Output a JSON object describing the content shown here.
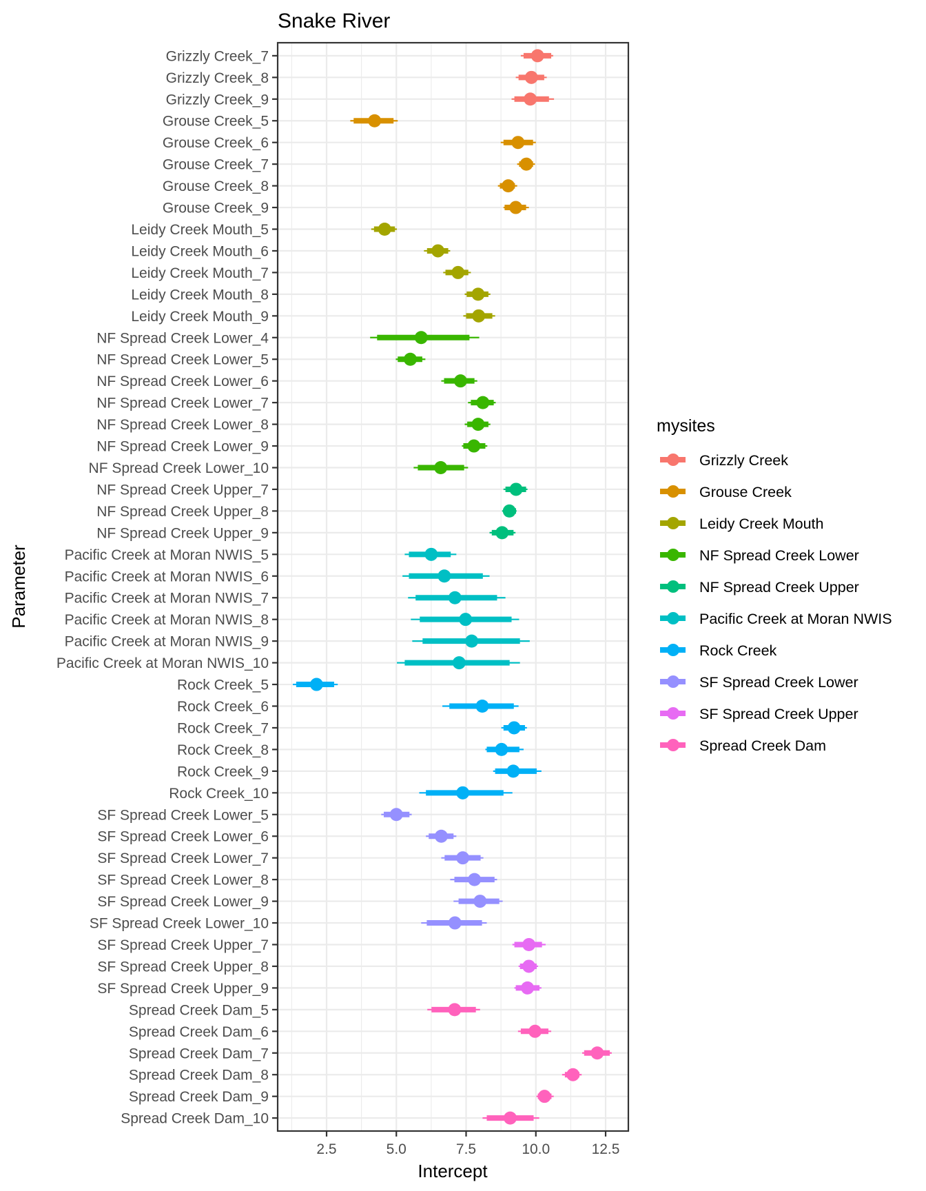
{
  "chart_data": {
    "type": "scatter",
    "subtype": "pointinterval",
    "title": "Snake River",
    "xlabel": "Intercept",
    "ylabel": "Parameter",
    "xlim": [
      0.75,
      13.3
    ],
    "xticks": [
      2.5,
      5.0,
      7.5,
      10.0,
      12.5
    ],
    "xtick_labels": [
      "2.5",
      "5.0",
      "7.5",
      "10.0",
      "12.5"
    ],
    "grid": true,
    "legend": {
      "title": "mysites",
      "placement": "right",
      "entries": [
        {
          "name": "Grizzly Creek",
          "color": "#F8766D"
        },
        {
          "name": "Grouse Creek",
          "color": "#D89000"
        },
        {
          "name": "Leidy Creek Mouth",
          "color": "#A3A500"
        },
        {
          "name": "NF Spread Creek Lower",
          "color": "#39B600"
        },
        {
          "name": "NF Spread Creek Upper",
          "color": "#00BF7D"
        },
        {
          "name": "Pacific Creek at Moran NWIS",
          "color": "#00BFC4"
        },
        {
          "name": "Rock Creek",
          "color": "#00B0F6"
        },
        {
          "name": "SF Spread Creek Lower",
          "color": "#9590FF"
        },
        {
          "name": "SF Spread Creek Upper",
          "color": "#E76BF3"
        },
        {
          "name": "Spread Creek Dam",
          "color": "#FF62BC"
        }
      ]
    },
    "rows": [
      {
        "label": "Grizzly Creek_7",
        "site": 0,
        "point": 10.06,
        "inner": [
          9.56,
          10.55
        ],
        "outer": [
          9.46,
          10.62
        ]
      },
      {
        "label": "Grizzly Creek_8",
        "site": 0,
        "point": 9.84,
        "inner": [
          9.38,
          10.3
        ],
        "outer": [
          9.28,
          10.39
        ]
      },
      {
        "label": "Grizzly Creek_9",
        "site": 0,
        "point": 9.8,
        "inner": [
          9.23,
          10.47
        ],
        "outer": [
          9.13,
          10.65
        ]
      },
      {
        "label": "Grouse Creek_5",
        "site": 1,
        "point": 4.22,
        "inner": [
          3.47,
          4.9
        ],
        "outer": [
          3.35,
          5.05
        ]
      },
      {
        "label": "Grouse Creek_6",
        "site": 1,
        "point": 9.36,
        "inner": [
          8.84,
          9.9
        ],
        "outer": [
          8.74,
          10.0
        ]
      },
      {
        "label": "Grouse Creek_7",
        "site": 1,
        "point": 9.66,
        "inner": [
          9.4,
          9.9
        ],
        "outer": [
          9.33,
          9.97
        ]
      },
      {
        "label": "Grouse Creek_8",
        "site": 1,
        "point": 9.01,
        "inner": [
          8.71,
          9.25
        ],
        "outer": [
          8.64,
          9.33
        ]
      },
      {
        "label": "Grouse Creek_9",
        "site": 1,
        "point": 9.28,
        "inner": [
          8.88,
          9.65
        ],
        "outer": [
          8.84,
          9.75
        ]
      },
      {
        "label": "Leidy Creek Mouth_5",
        "site": 2,
        "point": 4.58,
        "inner": [
          4.2,
          4.95
        ],
        "outer": [
          4.1,
          5.02
        ]
      },
      {
        "label": "Leidy Creek Mouth_6",
        "site": 2,
        "point": 6.49,
        "inner": [
          6.1,
          6.86
        ],
        "outer": [
          5.99,
          6.93
        ]
      },
      {
        "label": "Leidy Creek Mouth_7",
        "site": 2,
        "point": 7.21,
        "inner": [
          6.76,
          7.58
        ],
        "outer": [
          6.68,
          7.67
        ]
      },
      {
        "label": "Leidy Creek Mouth_8",
        "site": 2,
        "point": 7.93,
        "inner": [
          7.52,
          8.3
        ],
        "outer": [
          7.45,
          8.37
        ]
      },
      {
        "label": "Leidy Creek Mouth_9",
        "site": 2,
        "point": 7.95,
        "inner": [
          7.5,
          8.44
        ],
        "outer": [
          7.4,
          8.54
        ]
      },
      {
        "label": "NF Spread Creek Lower_4",
        "site": 3,
        "point": 5.89,
        "inner": [
          4.31,
          7.62
        ],
        "outer": [
          4.06,
          7.97
        ]
      },
      {
        "label": "NF Spread Creek Lower_5",
        "site": 3,
        "point": 5.5,
        "inner": [
          5.05,
          5.93
        ],
        "outer": [
          4.98,
          6.04
        ]
      },
      {
        "label": "NF Spread Creek Lower_6",
        "site": 3,
        "point": 7.3,
        "inner": [
          6.71,
          7.8
        ],
        "outer": [
          6.61,
          7.9
        ]
      },
      {
        "label": "NF Spread Creek Lower_7",
        "site": 3,
        "point": 8.1,
        "inner": [
          7.67,
          8.49
        ],
        "outer": [
          7.57,
          8.56
        ]
      },
      {
        "label": "NF Spread Creek Lower_8",
        "site": 3,
        "point": 7.93,
        "inner": [
          7.54,
          8.3
        ],
        "outer": [
          7.45,
          8.37
        ]
      },
      {
        "label": "NF Spread Creek Lower_9",
        "site": 3,
        "point": 7.78,
        "inner": [
          7.4,
          8.19
        ],
        "outer": [
          7.35,
          8.26
        ]
      },
      {
        "label": "NF Spread Creek Lower_10",
        "site": 3,
        "point": 6.59,
        "inner": [
          5.77,
          7.43
        ],
        "outer": [
          5.62,
          7.57
        ]
      },
      {
        "label": "NF Spread Creek Upper_7",
        "site": 4,
        "point": 9.29,
        "inner": [
          8.91,
          9.65
        ],
        "outer": [
          8.84,
          9.7
        ]
      },
      {
        "label": "NF Spread Creek Upper_8",
        "site": 4,
        "point": 9.05,
        "inner": [
          8.84,
          9.29
        ],
        "outer": [
          8.79,
          9.31
        ]
      },
      {
        "label": "NF Spread Creek Upper_9",
        "site": 4,
        "point": 8.79,
        "inner": [
          8.42,
          9.2
        ],
        "outer": [
          8.34,
          9.27
        ]
      },
      {
        "label": "Pacific Creek at Moran NWIS_5",
        "site": 5,
        "point": 6.25,
        "inner": [
          5.45,
          6.95
        ],
        "outer": [
          5.3,
          7.15
        ]
      },
      {
        "label": "Pacific Creek at Moran NWIS_6",
        "site": 5,
        "point": 6.72,
        "inner": [
          5.45,
          8.1
        ],
        "outer": [
          5.22,
          8.34
        ]
      },
      {
        "label": "Pacific Creek at Moran NWIS_7",
        "site": 5,
        "point": 7.1,
        "inner": [
          5.69,
          8.61
        ],
        "outer": [
          5.42,
          8.91
        ]
      },
      {
        "label": "Pacific Creek at Moran NWIS_8",
        "site": 5,
        "point": 7.48,
        "inner": [
          5.84,
          9.13
        ],
        "outer": [
          5.52,
          9.4
        ]
      },
      {
        "label": "Pacific Creek at Moran NWIS_9",
        "site": 5,
        "point": 7.7,
        "inner": [
          5.94,
          9.43
        ],
        "outer": [
          5.57,
          9.78
        ]
      },
      {
        "label": "Pacific Creek at Moran NWIS_10",
        "site": 5,
        "point": 7.25,
        "inner": [
          5.3,
          9.06
        ],
        "outer": [
          5.02,
          9.43
        ]
      },
      {
        "label": "Rock Creek_5",
        "site": 6,
        "point": 2.14,
        "inner": [
          1.41,
          2.77
        ],
        "outer": [
          1.29,
          2.9
        ]
      },
      {
        "label": "Rock Creek_6",
        "site": 6,
        "point": 8.08,
        "inner": [
          6.9,
          9.21
        ],
        "outer": [
          6.65,
          9.38
        ]
      },
      {
        "label": "Rock Creek_7",
        "site": 6,
        "point": 9.22,
        "inner": [
          8.84,
          9.61
        ],
        "outer": [
          8.76,
          9.68
        ]
      },
      {
        "label": "Rock Creek_8",
        "site": 6,
        "point": 8.77,
        "inner": [
          8.24,
          9.41
        ],
        "outer": [
          8.19,
          9.56
        ]
      },
      {
        "label": "Rock Creek_9",
        "site": 6,
        "point": 9.19,
        "inner": [
          8.54,
          10.03
        ],
        "outer": [
          8.47,
          10.2
        ]
      },
      {
        "label": "Rock Creek_10",
        "site": 6,
        "point": 7.38,
        "inner": [
          6.06,
          8.84
        ],
        "outer": [
          5.82,
          9.16
        ]
      },
      {
        "label": "SF Spread Creek Lower_5",
        "site": 7,
        "point": 5.0,
        "inner": [
          4.55,
          5.47
        ],
        "outer": [
          4.46,
          5.55
        ]
      },
      {
        "label": "SF Spread Creek Lower_6",
        "site": 7,
        "point": 6.61,
        "inner": [
          6.16,
          7.05
        ],
        "outer": [
          6.06,
          7.15
        ]
      },
      {
        "label": "SF Spread Creek Lower_7",
        "site": 7,
        "point": 7.38,
        "inner": [
          6.73,
          8.02
        ],
        "outer": [
          6.61,
          8.12
        ]
      },
      {
        "label": "SF Spread Creek Lower_8",
        "site": 7,
        "point": 7.8,
        "inner": [
          7.08,
          8.52
        ],
        "outer": [
          6.93,
          8.61
        ]
      },
      {
        "label": "SF Spread Creek Lower_9",
        "site": 7,
        "point": 8.0,
        "inner": [
          7.23,
          8.69
        ],
        "outer": [
          7.05,
          8.81
        ]
      },
      {
        "label": "SF Spread Creek Lower_10",
        "site": 7,
        "point": 7.1,
        "inner": [
          6.09,
          8.07
        ],
        "outer": [
          5.89,
          8.24
        ]
      },
      {
        "label": "SF Spread Creek Upper_7",
        "site": 8,
        "point": 9.75,
        "inner": [
          9.23,
          10.22
        ],
        "outer": [
          9.16,
          10.35
        ]
      },
      {
        "label": "SF Spread Creek Upper_8",
        "site": 8,
        "point": 9.75,
        "inner": [
          9.43,
          10.03
        ],
        "outer": [
          9.38,
          10.08
        ]
      },
      {
        "label": "SF Spread Creek Upper_9",
        "site": 8,
        "point": 9.7,
        "inner": [
          9.28,
          10.13
        ],
        "outer": [
          9.23,
          10.2
        ]
      },
      {
        "label": "Spread Creek Dam_5",
        "site": 9,
        "point": 7.09,
        "inner": [
          6.26,
          7.85
        ],
        "outer": [
          6.11,
          8.0
        ]
      },
      {
        "label": "Spread Creek Dam_6",
        "site": 9,
        "point": 9.97,
        "inner": [
          9.46,
          10.45
        ],
        "outer": [
          9.36,
          10.55
        ]
      },
      {
        "label": "Spread Creek Dam_7",
        "site": 9,
        "point": 12.2,
        "inner": [
          11.73,
          12.65
        ],
        "outer": [
          11.66,
          12.72
        ]
      },
      {
        "label": "Spread Creek Dam_8",
        "site": 9,
        "point": 11.33,
        "inner": [
          11.04,
          11.56
        ],
        "outer": [
          10.94,
          11.64
        ]
      },
      {
        "label": "Spread Creek Dam_9",
        "site": 9,
        "point": 10.31,
        "inner": [
          10.07,
          10.56
        ],
        "outer": [
          10.02,
          10.64
        ]
      },
      {
        "label": "Spread Creek Dam_10",
        "site": 9,
        "point": 9.08,
        "inner": [
          8.24,
          9.92
        ],
        "outer": [
          8.09,
          10.12
        ]
      }
    ]
  }
}
